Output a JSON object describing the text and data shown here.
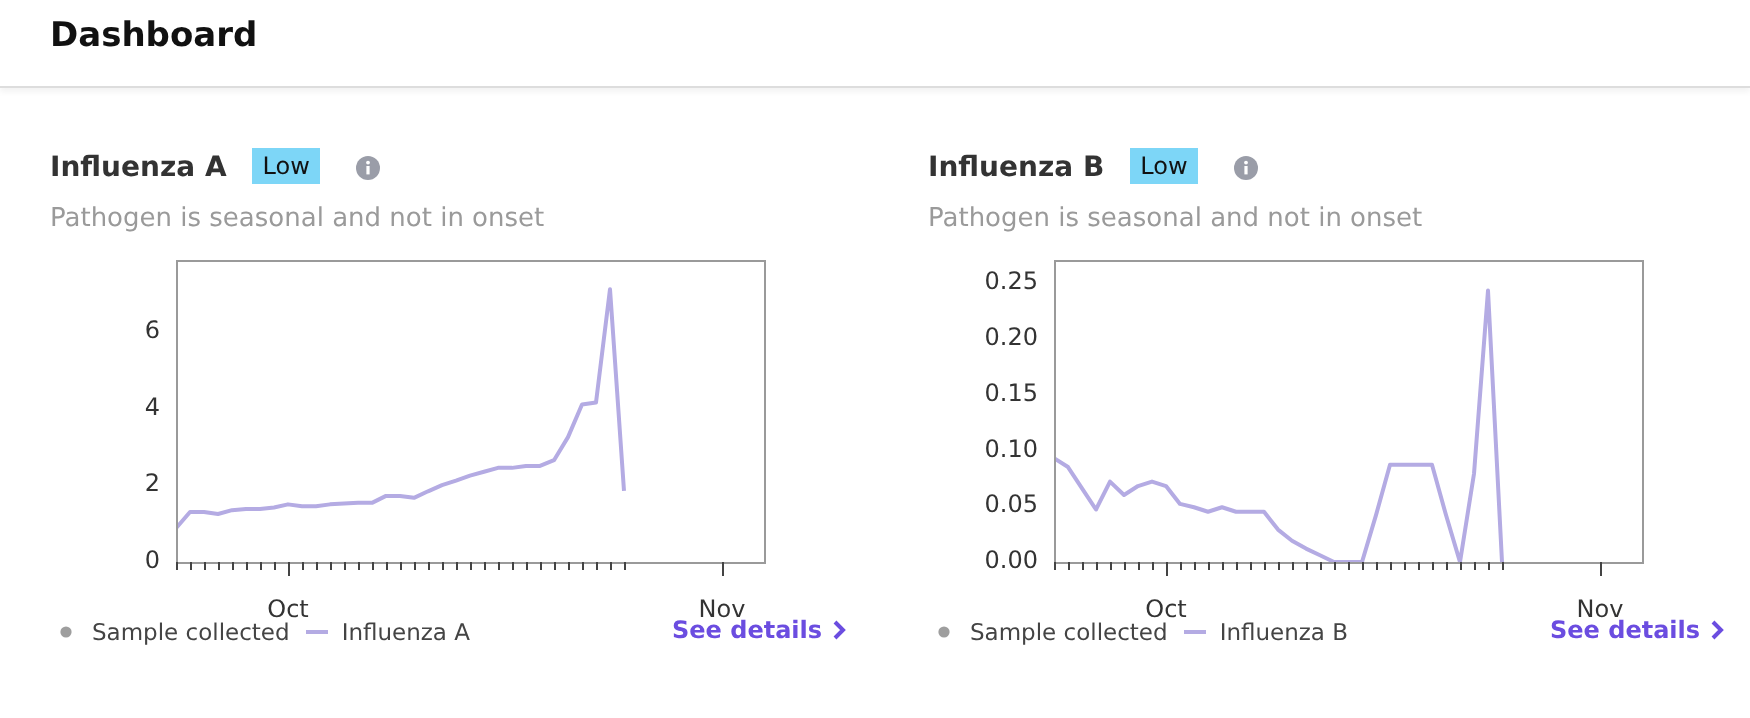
{
  "chart_data": [
    {
      "type": "line",
      "title": "Influenza A",
      "subtitle": "Pathogen is seasonal and not in onset",
      "annotations": [
        "Low",
        "See details",
        "Dashboard"
      ],
      "x": [
        "--09-23",
        "--09-24",
        "--09-25",
        "--09-26",
        "--09-27",
        "--09-28",
        "--09-29",
        "--09-30",
        "--10-01",
        "--10-02",
        "--10-03",
        "--10-04",
        "--10-05",
        "--10-06",
        "--10-07",
        "--10-08",
        "--10-09",
        "--10-10",
        "--10-11",
        "--10-12",
        "--10-13",
        "--10-14",
        "--10-15",
        "--10-16",
        "--10-17",
        "--10-18",
        "--10-19",
        "--10-20",
        "--10-21",
        "--10-22",
        "--10-23",
        "--10-24",
        "--10-25"
      ],
      "series": [
        {
          "name": "Sample collected",
          "type": "scatter",
          "color": "#9e9e9e",
          "values": [
            null,
            null,
            null,
            null,
            null,
            null,
            null,
            null,
            null,
            null,
            null,
            null,
            null,
            null,
            null,
            null,
            null,
            null,
            null,
            null,
            null,
            null,
            null,
            null,
            null,
            null,
            null,
            null,
            null,
            null,
            null,
            null,
            null
          ]
        },
        {
          "name": "Influenza A",
          "type": "line",
          "color": "#b4abe3",
          "values": [
            0.88,
            1.3,
            1.3,
            1.25,
            1.35,
            1.38,
            1.38,
            1.42,
            1.5,
            1.45,
            1.45,
            1.5,
            1.52,
            1.54,
            1.54,
            1.72,
            1.72,
            1.67,
            1.84,
            2.0,
            2.12,
            2.25,
            2.35,
            2.45,
            2.45,
            2.5,
            2.5,
            2.65,
            3.25,
            4.1,
            4.15,
            7.1,
            1.85
          ]
        }
      ],
      "xlim": [
        "--09-23",
        "--11-04"
      ],
      "xticks": [
        {
          "value": "--09-23",
          "label": null
        },
        {
          "value": "--09-24",
          "label": null
        },
        {
          "value": "--09-25",
          "label": null
        },
        {
          "value": "--09-26",
          "label": null
        },
        {
          "value": "--09-27",
          "label": null
        },
        {
          "value": "--09-28",
          "label": null
        },
        {
          "value": "--09-29",
          "label": null
        },
        {
          "value": "--09-30",
          "label": null
        },
        {
          "value": "--10-01",
          "label": "Oct"
        },
        {
          "value": "--10-02",
          "label": null
        },
        {
          "value": "--10-03",
          "label": null
        },
        {
          "value": "--10-04",
          "label": null
        },
        {
          "value": "--10-05",
          "label": null
        },
        {
          "value": "--10-06",
          "label": null
        },
        {
          "value": "--10-07",
          "label": null
        },
        {
          "value": "--10-08",
          "label": null
        },
        {
          "value": "--10-09",
          "label": null
        },
        {
          "value": "--10-10",
          "label": null
        },
        {
          "value": "--10-11",
          "label": null
        },
        {
          "value": "--10-12",
          "label": null
        },
        {
          "value": "--10-13",
          "label": null
        },
        {
          "value": "--10-14",
          "label": null
        },
        {
          "value": "--10-15",
          "label": null
        },
        {
          "value": "--10-16",
          "label": null
        },
        {
          "value": "--10-17",
          "label": null
        },
        {
          "value": "--10-18",
          "label": null
        },
        {
          "value": "--10-19",
          "label": null
        },
        {
          "value": "--10-20",
          "label": null
        },
        {
          "value": "--10-21",
          "label": null
        },
        {
          "value": "--10-22",
          "label": null
        },
        {
          "value": "--10-23",
          "label": null
        },
        {
          "value": "--10-24",
          "label": null
        },
        {
          "value": "--10-25",
          "label": null
        },
        {
          "value": "--11-01",
          "label": "Nov"
        }
      ],
      "ylim": [
        0,
        7.85
      ],
      "yticks": [
        0,
        2,
        4,
        6
      ],
      "grid": false,
      "legend": "bottom"
    },
    {
      "type": "line",
      "title": "Influenza B",
      "subtitle": "Pathogen is seasonal and not in onset",
      "annotations": [
        "Low",
        "See details"
      ],
      "x": [
        "--09-23",
        "--09-24",
        "--09-25",
        "--09-26",
        "--09-27",
        "--09-28",
        "--09-29",
        "--09-30",
        "--10-01",
        "--10-02",
        "--10-03",
        "--10-04",
        "--10-05",
        "--10-06",
        "--10-07",
        "--10-08",
        "--10-09",
        "--10-10",
        "--10-11",
        "--10-12",
        "--10-13",
        "--10-14",
        "--10-15",
        "--10-16",
        "--10-17",
        "--10-18",
        "--10-19",
        "--10-20",
        "--10-21",
        "--10-22",
        "--10-23",
        "--10-24",
        "--10-25"
      ],
      "series": [
        {
          "name": "Sample collected",
          "type": "scatter",
          "color": "#9e9e9e",
          "values": [
            null,
            null,
            null,
            null,
            null,
            null,
            null,
            null,
            null,
            null,
            null,
            null,
            null,
            null,
            null,
            null,
            null,
            null,
            null,
            null,
            null,
            null,
            null,
            null,
            null,
            null,
            null,
            null,
            null,
            null,
            null,
            null,
            null
          ]
        },
        {
          "name": "Influenza B",
          "type": "line",
          "color": "#b4abe3",
          "values": [
            0.093,
            0.085,
            0.066,
            0.047,
            0.072,
            0.06,
            0.068,
            0.072,
            0.068,
            0.052,
            0.049,
            0.045,
            0.049,
            0.045,
            0.045,
            0.045,
            0.029,
            0.019,
            0.012,
            0.006,
            0,
            0,
            0,
            0.042,
            0.087,
            0.087,
            0.087,
            0.087,
            0.042,
            0,
            0.079,
            0.243,
            0
          ]
        }
      ],
      "xlim": [
        "--09-23",
        "--11-04"
      ],
      "xticks": [
        {
          "value": "--09-23",
          "label": null
        },
        {
          "value": "--09-24",
          "label": null
        },
        {
          "value": "--09-25",
          "label": null
        },
        {
          "value": "--09-26",
          "label": null
        },
        {
          "value": "--09-27",
          "label": null
        },
        {
          "value": "--09-28",
          "label": null
        },
        {
          "value": "--09-29",
          "label": null
        },
        {
          "value": "--09-30",
          "label": null
        },
        {
          "value": "--10-01",
          "label": "Oct"
        },
        {
          "value": "--10-02",
          "label": null
        },
        {
          "value": "--10-03",
          "label": null
        },
        {
          "value": "--10-04",
          "label": null
        },
        {
          "value": "--10-05",
          "label": null
        },
        {
          "value": "--10-06",
          "label": null
        },
        {
          "value": "--10-07",
          "label": null
        },
        {
          "value": "--10-08",
          "label": null
        },
        {
          "value": "--10-09",
          "label": null
        },
        {
          "value": "--10-10",
          "label": null
        },
        {
          "value": "--10-11",
          "label": null
        },
        {
          "value": "--10-12",
          "label": null
        },
        {
          "value": "--10-13",
          "label": null
        },
        {
          "value": "--10-14",
          "label": null
        },
        {
          "value": "--10-15",
          "label": null
        },
        {
          "value": "--10-16",
          "label": null
        },
        {
          "value": "--10-17",
          "label": null
        },
        {
          "value": "--10-18",
          "label": null
        },
        {
          "value": "--10-19",
          "label": null
        },
        {
          "value": "--10-20",
          "label": null
        },
        {
          "value": "--10-21",
          "label": null
        },
        {
          "value": "--10-22",
          "label": null
        },
        {
          "value": "--10-23",
          "label": null
        },
        {
          "value": "--10-24",
          "label": null
        },
        {
          "value": "--10-25",
          "label": null
        },
        {
          "value": "--11-01",
          "label": "Nov"
        }
      ],
      "ylim": [
        0,
        0.27
      ],
      "yticks": [
        {
          "value": 0,
          "label": "0.00"
        },
        {
          "value": 0.05,
          "label": "0.05"
        },
        {
          "value": 0.1,
          "label": "0.10"
        },
        {
          "value": 0.15,
          "label": "0.15"
        },
        {
          "value": 0.2,
          "label": "0.20"
        },
        {
          "value": 0.25,
          "label": "0.25"
        }
      ],
      "grid": false,
      "legend": "bottom"
    }
  ]
}
